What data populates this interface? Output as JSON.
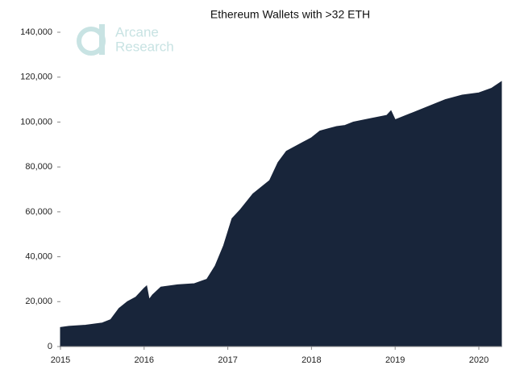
{
  "chart_data": {
    "type": "area",
    "title": "Ethereum Wallets with >32 ETH",
    "logo_text": [
      "Arcane",
      "Research"
    ],
    "color": "#18253a",
    "x": [
      2015.0,
      2015.1,
      2015.3,
      2015.5,
      2015.6,
      2015.7,
      2015.8,
      2015.9,
      2016.0,
      2016.03,
      2016.06,
      2016.1,
      2016.2,
      2016.4,
      2016.6,
      2016.75,
      2016.85,
      2016.95,
      2017.05,
      2017.15,
      2017.3,
      2017.5,
      2017.6,
      2017.7,
      2017.9,
      2018.0,
      2018.1,
      2018.2,
      2018.3,
      2018.4,
      2018.5,
      2018.7,
      2018.9,
      2018.95,
      2019.0,
      2019.2,
      2019.4,
      2019.6,
      2019.8,
      2020.0,
      2020.15,
      2020.27
    ],
    "values": [
      8500,
      9000,
      9500,
      10500,
      12000,
      17000,
      20000,
      22000,
      26000,
      27000,
      21000,
      23000,
      26500,
      27500,
      28000,
      30000,
      36000,
      45000,
      57000,
      61000,
      68000,
      74000,
      82000,
      87000,
      91000,
      93000,
      96000,
      97000,
      98000,
      98500,
      100000,
      101500,
      103000,
      105000,
      101000,
      104000,
      107000,
      110000,
      112000,
      113000,
      115000,
      118000
    ],
    "xlim": [
      2015,
      2020.27
    ],
    "xticks": [
      2015,
      2016,
      2017,
      2018,
      2019,
      2020
    ],
    "ylim": [
      0,
      140000
    ],
    "yticks": [
      0,
      {
        "value": 20000,
        "label": "20,000"
      },
      {
        "value": 40000,
        "label": "40,000"
      },
      {
        "value": 60000,
        "label": "60,000"
      },
      {
        "value": 80000,
        "label": "80,000"
      },
      {
        "value": 100000,
        "label": "100,000"
      },
      {
        "value": 120000,
        "label": "120,000"
      },
      {
        "value": 140000,
        "label": "140,000"
      }
    ]
  }
}
